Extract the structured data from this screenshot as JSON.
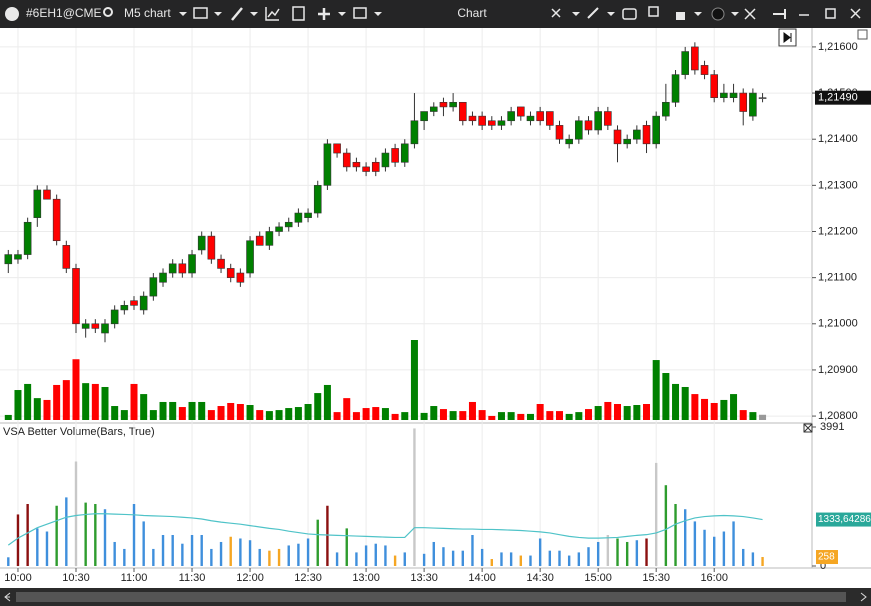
{
  "toolbar": {
    "symbol": "#6EH1@CME",
    "timeframe": "M5 chart",
    "window_title": "Chart"
  },
  "price_chart": {
    "type": "candlestick",
    "ylim": [
      1.20785,
      1.21641
    ],
    "yticks": [
      {
        "value": 1.216,
        "label": "1,21600"
      },
      {
        "value": 1.215,
        "label": "1,21500"
      },
      {
        "value": 1.214,
        "label": "1,21400"
      },
      {
        "value": 1.213,
        "label": "1,21300"
      },
      {
        "value": 1.212,
        "label": "1,21200"
      },
      {
        "value": 1.211,
        "label": "1,21100"
      },
      {
        "value": 1.21,
        "label": "1,21000"
      },
      {
        "value": 1.209,
        "label": "1,20900"
      },
      {
        "value": 1.208,
        "label": "1,20800"
      }
    ],
    "last_price": {
      "value": 1.2149,
      "label": "1,21490"
    },
    "up_color": "#008000",
    "down_color": "#ff0000",
    "flat_color": "#999999",
    "grid": true,
    "candles": [
      [
        1.2113,
        1.2116,
        1.2111,
        1.2115
      ],
      [
        1.2114,
        1.2116,
        1.2113,
        1.2115
      ],
      [
        1.2115,
        1.2123,
        1.2114,
        1.2122
      ],
      [
        1.2123,
        1.213,
        1.2121,
        1.2129
      ],
      [
        1.2129,
        1.213,
        1.2127,
        1.2127
      ],
      [
        1.2127,
        1.2128,
        1.2117,
        1.2118
      ],
      [
        1.2117,
        1.2118,
        1.2111,
        1.2112
      ],
      [
        1.2112,
        1.2113,
        1.2098,
        1.21
      ],
      [
        1.2099,
        1.2101,
        1.2097,
        1.21
      ],
      [
        1.21,
        1.2101,
        1.2098,
        1.2099
      ],
      [
        1.2098,
        1.2101,
        1.2096,
        1.21
      ],
      [
        1.21,
        1.2104,
        1.2099,
        1.2103
      ],
      [
        1.2103,
        1.2105,
        1.2102,
        1.2104
      ],
      [
        1.2105,
        1.2106,
        1.2103,
        1.2104
      ],
      [
        1.2103,
        1.2107,
        1.2102,
        1.2106
      ],
      [
        1.2106,
        1.2111,
        1.2105,
        1.211
      ],
      [
        1.2109,
        1.2112,
        1.2108,
        1.2111
      ],
      [
        1.2111,
        1.2114,
        1.211,
        1.2113
      ],
      [
        1.2113,
        1.2114,
        1.211,
        1.2111
      ],
      [
        1.2111,
        1.2116,
        1.211,
        1.2115
      ],
      [
        1.2116,
        1.212,
        1.2115,
        1.2119
      ],
      [
        1.2119,
        1.212,
        1.2113,
        1.2114
      ],
      [
        1.2114,
        1.2115,
        1.2111,
        1.2112
      ],
      [
        1.2112,
        1.2113,
        1.2109,
        1.211
      ],
      [
        1.2111,
        1.2112,
        1.2108,
        1.2109
      ],
      [
        1.2111,
        1.2119,
        1.211,
        1.2118
      ],
      [
        1.2119,
        1.212,
        1.2117,
        1.2117
      ],
      [
        1.2117,
        1.2121,
        1.2116,
        1.212
      ],
      [
        1.212,
        1.2122,
        1.2119,
        1.2121
      ],
      [
        1.2121,
        1.2123,
        1.212,
        1.2122
      ],
      [
        1.2122,
        1.2125,
        1.2121,
        1.2124
      ],
      [
        1.2123,
        1.2125,
        1.2122,
        1.2124
      ],
      [
        1.2124,
        1.2131,
        1.2123,
        1.213
      ],
      [
        1.213,
        1.214,
        1.2129,
        1.2139
      ],
      [
        1.2139,
        1.2139,
        1.2136,
        1.2137
      ],
      [
        1.2137,
        1.2138,
        1.2133,
        1.2134
      ],
      [
        1.2135,
        1.2136,
        1.2133,
        1.2134
      ],
      [
        1.2134,
        1.2135,
        1.2132,
        1.2133
      ],
      [
        1.2135,
        1.2136,
        1.2132,
        1.2133
      ],
      [
        1.2134,
        1.2138,
        1.2133,
        1.2137
      ],
      [
        1.2138,
        1.2139,
        1.2134,
        1.2135
      ],
      [
        1.2135,
        1.214,
        1.2134,
        1.2139
      ],
      [
        1.2139,
        1.215,
        1.2138,
        1.2144
      ],
      [
        1.2144,
        1.2146,
        1.2142,
        1.2146
      ],
      [
        1.2146,
        1.2148,
        1.2145,
        1.2147
      ],
      [
        1.2148,
        1.2149,
        1.2145,
        1.2147
      ],
      [
        1.2147,
        1.215,
        1.2146,
        1.2148
      ],
      [
        1.2148,
        1.2148,
        1.2143,
        1.2144
      ],
      [
        1.2145,
        1.2146,
        1.2143,
        1.2144
      ],
      [
        1.2145,
        1.2146,
        1.2142,
        1.2143
      ],
      [
        1.2144,
        1.2145,
        1.2142,
        1.2143
      ],
      [
        1.2143,
        1.2145,
        1.2142,
        1.2144
      ],
      [
        1.2144,
        1.2147,
        1.2143,
        1.2146
      ],
      [
        1.2147,
        1.2147,
        1.2144,
        1.2145
      ],
      [
        1.2144,
        1.2146,
        1.2143,
        1.2145
      ],
      [
        1.2146,
        1.2147,
        1.2143,
        1.2144
      ],
      [
        1.2146,
        1.2146,
        1.2142,
        1.2143
      ],
      [
        1.2143,
        1.2144,
        1.2139,
        1.214
      ],
      [
        1.2139,
        1.2141,
        1.2138,
        1.214
      ],
      [
        1.214,
        1.2145,
        1.2139,
        1.2144
      ],
      [
        1.2144,
        1.2145,
        1.2141,
        1.2142
      ],
      [
        1.2142,
        1.2147,
        1.2141,
        1.2146
      ],
      [
        1.2146,
        1.2147,
        1.2142,
        1.2143
      ],
      [
        1.2142,
        1.2143,
        1.2135,
        1.2139
      ],
      [
        1.2139,
        1.2141,
        1.2138,
        1.214
      ],
      [
        1.214,
        1.2143,
        1.2139,
        1.2142
      ],
      [
        1.2143,
        1.2144,
        1.2137,
        1.2139
      ],
      [
        1.2139,
        1.2146,
        1.2138,
        1.2145
      ],
      [
        1.2145,
        1.2152,
        1.2144,
        1.2148
      ],
      [
        1.2148,
        1.2155,
        1.2147,
        1.2154
      ],
      [
        1.2154,
        1.216,
        1.2153,
        1.2159
      ],
      [
        1.216,
        1.2161,
        1.2154,
        1.2155
      ],
      [
        1.2156,
        1.2157,
        1.2153,
        1.2154
      ],
      [
        1.2154,
        1.2155,
        1.2148,
        1.2149
      ],
      [
        1.2149,
        1.2152,
        1.2148,
        1.215
      ],
      [
        1.2149,
        1.2152,
        1.2148,
        1.215
      ],
      [
        1.215,
        1.2151,
        1.2143,
        1.2146
      ],
      [
        1.2145,
        1.2151,
        1.2144,
        1.215
      ],
      [
        1.2149,
        1.215,
        1.2148,
        1.2149
      ]
    ],
    "volumes": [
      250,
      1480,
      1780,
      1080,
      990,
      1730,
      1970,
      3000,
      1820,
      1780,
      1630,
      690,
      490,
      1780,
      1280,
      490,
      890,
      890,
      640,
      890,
      890,
      490,
      690,
      840,
      790,
      740,
      490,
      440,
      490,
      590,
      640,
      790,
      1330,
      1730,
      390,
      1080,
      390,
      590,
      640,
      590,
      300,
      390,
      3950,
      350,
      690,
      540,
      440,
      440,
      890,
      490,
      200,
      390,
      390,
      300,
      300,
      790,
      440,
      440,
      300,
      390,
      540,
      690,
      890,
      790,
      690,
      740,
      790,
      2960,
      2320,
      1780,
      1630,
      1280,
      1040,
      840,
      990,
      1280,
      490,
      390,
      258
    ],
    "xticks": [
      {
        "value": 1,
        "label": "10:00"
      },
      {
        "value": 7,
        "label": "10:30"
      },
      {
        "value": 13,
        "label": "11:00"
      },
      {
        "value": 19,
        "label": "11:30"
      },
      {
        "value": 25,
        "label": "12:00"
      },
      {
        "value": 31,
        "label": "12:30"
      },
      {
        "value": 37,
        "label": "13:00"
      },
      {
        "value": 43,
        "label": "13:30"
      },
      {
        "value": 49,
        "label": "14:00"
      },
      {
        "value": 55,
        "label": "14:30"
      },
      {
        "value": 61,
        "label": "15:00"
      },
      {
        "value": 67,
        "label": "15:30"
      },
      {
        "value": 73,
        "label": "16:00"
      }
    ]
  },
  "indicator": {
    "title": "VSA Better Volume(Bars, True)",
    "ylim": [
      0,
      3991
    ],
    "yticks": [
      0,
      3991
    ],
    "average_color": "#4fc3c8",
    "average": [
      600,
      800,
      950,
      1100,
      1200,
      1300,
      1400,
      1450,
      1480,
      1500,
      1500,
      1490,
      1480,
      1470,
      1450,
      1440,
      1430,
      1420,
      1400,
      1380,
      1350,
      1300,
      1260,
      1230,
      1200,
      1160,
      1120,
      1080,
      1050,
      1000,
      960,
      920,
      900,
      890,
      880,
      870,
      860,
      850,
      840,
      830,
      820,
      820,
      1100,
      1100,
      1090,
      1080,
      1070,
      1060,
      1060,
      1050,
      1050,
      1040,
      1030,
      1020,
      1000,
      980,
      950,
      900,
      850,
      820,
      800,
      800,
      810,
      820,
      850,
      880,
      900,
      950,
      1050,
      1200,
      1300,
      1380,
      1420,
      1440,
      1450,
      1440,
      1420,
      1380,
      1333.64286
    ],
    "last_average": {
      "value": 1333.64286,
      "label": "1333,64286"
    },
    "last_volume": 258,
    "bar_colors": [
      "#3f8fdc",
      "#8b1010",
      "#8b1010",
      "#3f8fdc",
      "#3f8fdc",
      "#2e9c2e",
      "#3f8fdc",
      "#c8c8c8",
      "#2e9c2e",
      "#2e9c2e",
      "#3f8fdc",
      "#3f8fdc",
      "#3f8fdc",
      "#3f8fdc",
      "#3f8fdc",
      "#3f8fdc",
      "#3f8fdc",
      "#3f8fdc",
      "#3f8fdc",
      "#3f8fdc",
      "#3f8fdc",
      "#3f8fdc",
      "#3f8fdc",
      "#f5a623",
      "#3f8fdc",
      "#3f8fdc",
      "#3f8fdc",
      "#f5a623",
      "#f5a623",
      "#3f8fdc",
      "#3f8fdc",
      "#3f8fdc",
      "#2e9c2e",
      "#8b1010",
      "#3f8fdc",
      "#2e9c2e",
      "#3f8fdc",
      "#3f8fdc",
      "#3f8fdc",
      "#3f8fdc",
      "#f5a623",
      "#3f8fdc",
      "#c8c8c8",
      "#3f8fdc",
      "#3f8fdc",
      "#3f8fdc",
      "#3f8fdc",
      "#3f8fdc",
      "#3f8fdc",
      "#3f8fdc",
      "#f5a623",
      "#3f8fdc",
      "#3f8fdc",
      "#f5a623",
      "#3f8fdc",
      "#3f8fdc",
      "#3f8fdc",
      "#3f8fdc",
      "#3f8fdc",
      "#3f8fdc",
      "#3f8fdc",
      "#3f8fdc",
      "#c8c8c8",
      "#2e9c2e",
      "#2e9c2e",
      "#3f8fdc",
      "#8b1010",
      "#c8c8c8",
      "#2e9c2e",
      "#2e9c2e",
      "#3f8fdc",
      "#3f8fdc",
      "#3f8fdc",
      "#3f8fdc",
      "#3f8fdc",
      "#3f8fdc",
      "#3f8fdc",
      "#3f8fdc",
      "#f5a623"
    ]
  }
}
